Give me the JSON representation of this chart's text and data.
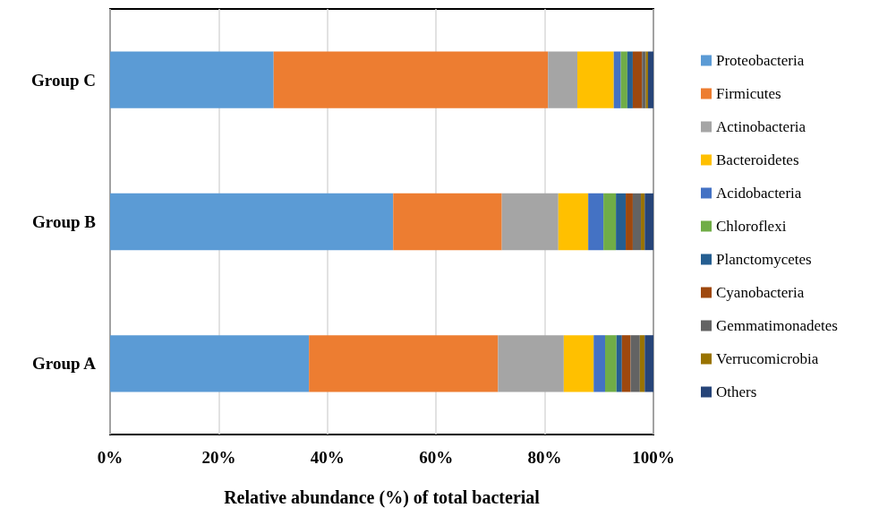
{
  "chart_data": {
    "type": "bar",
    "orientation": "horizontal",
    "stacked": true,
    "xlabel": "Relative abundance (%) of total bacterial",
    "categories": [
      "Group C",
      "Group B",
      "Group A"
    ],
    "series": [
      {
        "name": "Proteobacteria",
        "color": "#5b9bd5",
        "values": [
          30.1,
          52.1,
          36.6
        ]
      },
      {
        "name": "Firmicutes",
        "color": "#ed7d31",
        "values": [
          50.5,
          20.0,
          34.8
        ]
      },
      {
        "name": "Actinobacteria",
        "color": "#a5a5a5",
        "values": [
          5.4,
          10.4,
          12.1
        ]
      },
      {
        "name": "Bacteroidetes",
        "color": "#ffc000",
        "values": [
          6.7,
          5.5,
          5.5
        ]
      },
      {
        "name": "Acidobacteria",
        "color": "#4472c4",
        "values": [
          1.3,
          2.8,
          2.1
        ]
      },
      {
        "name": "Chloroflexi",
        "color": "#70ad47",
        "values": [
          1.2,
          2.3,
          2.1
        ]
      },
      {
        "name": "Planctomycetes",
        "color": "#255e91",
        "values": [
          1.0,
          1.8,
          1.0
        ]
      },
      {
        "name": "Cyanobacteria",
        "color": "#9e480e",
        "values": [
          1.7,
          1.3,
          1.6
        ]
      },
      {
        "name": "Gemmatimonadetes",
        "color": "#636363",
        "values": [
          0.7,
          1.5,
          1.7
        ]
      },
      {
        "name": "Verrucomicrobia",
        "color": "#997300",
        "values": [
          0.4,
          0.7,
          0.9
        ]
      },
      {
        "name": "Others",
        "color": "#264478",
        "values": [
          1.0,
          1.6,
          1.6
        ]
      }
    ],
    "xlim": [
      0,
      100
    ],
    "xticks": [
      {
        "value": 0,
        "label": "0%"
      },
      {
        "value": 20,
        "label": "20%"
      },
      {
        "value": 40,
        "label": "40%"
      },
      {
        "value": 60,
        "label": "60%"
      },
      {
        "value": 80,
        "label": "80%"
      },
      {
        "value": 100,
        "label": "100%"
      }
    ],
    "grid": "x",
    "legend": "right"
  }
}
